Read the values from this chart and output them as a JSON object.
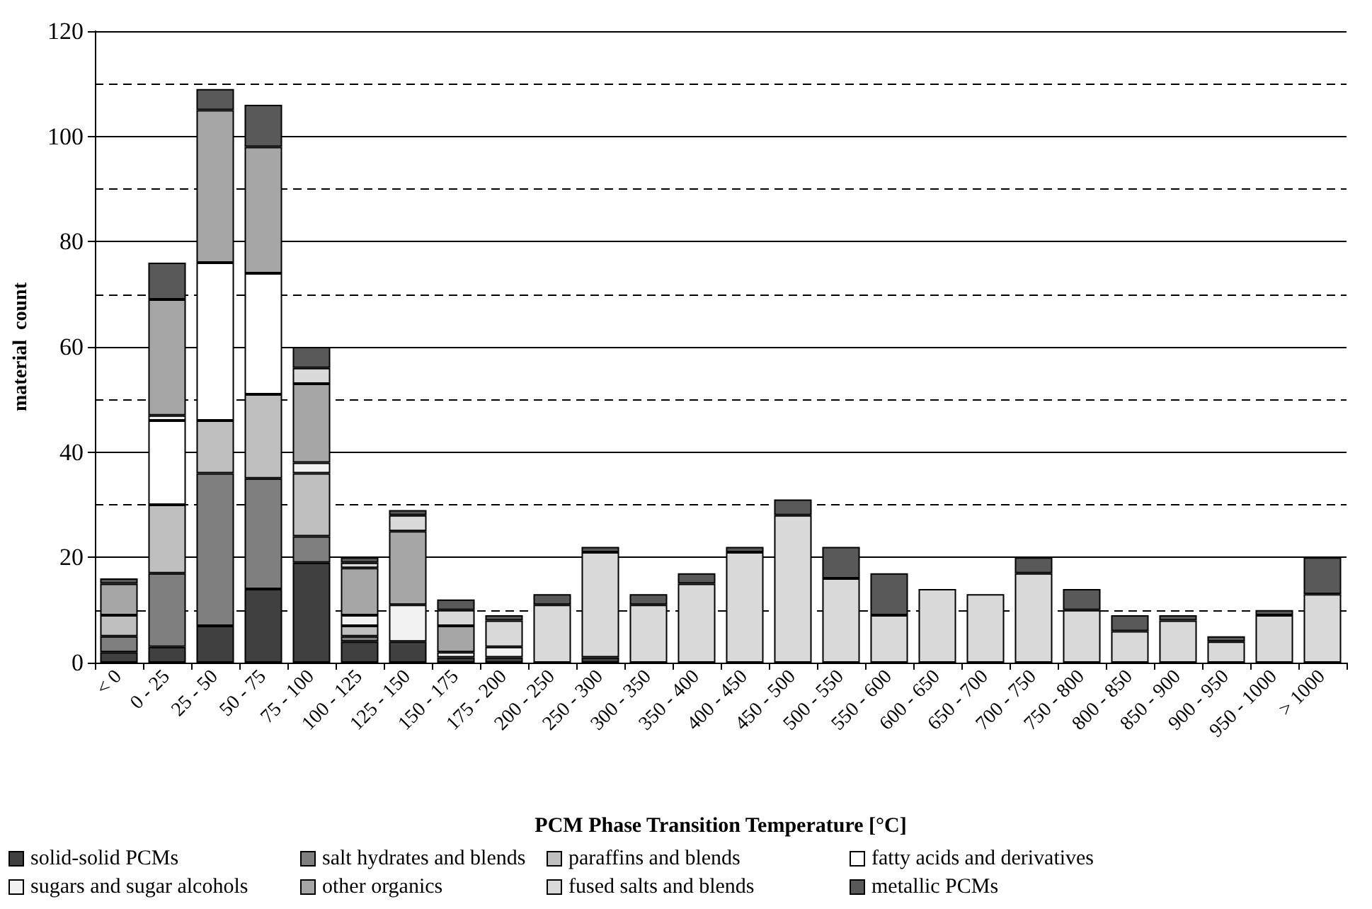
{
  "chart_data": {
    "type": "bar",
    "stacked": true,
    "xlabel": "PCM Phase Transition Temperature [°C]",
    "ylabel": "material  count",
    "categories": [
      "< 0",
      "0 - 25",
      "25 - 50",
      "50 - 75",
      "75 - 100",
      "100 - 125",
      "125 - 150",
      "150 - 175",
      "175 - 200",
      "200 - 250",
      "250 - 300",
      "300 - 350",
      "350 - 400",
      "400 - 450",
      "450 - 500",
      "500 - 550",
      "550 - 600",
      "600 - 650",
      "650 - 700",
      "700 - 750",
      "750 - 800",
      "800 - 850",
      "850 - 900",
      "900 - 950",
      "950 - 1000",
      "> 1000"
    ],
    "series": [
      {
        "name": "solid-solid PCMs",
        "color": "#404040",
        "values": [
          2,
          3,
          7,
          14,
          19,
          4,
          4,
          1,
          1,
          0,
          1,
          0,
          0,
          0,
          0,
          0,
          0,
          0,
          0,
          0,
          0,
          0,
          0,
          0,
          0,
          0
        ]
      },
      {
        "name": "salt hydrates and blends",
        "color": "#7f7f7f",
        "values": [
          3,
          14,
          29,
          21,
          5,
          1,
          0,
          0,
          0,
          0,
          0,
          0,
          0,
          0,
          0,
          0,
          0,
          0,
          0,
          0,
          0,
          0,
          0,
          0,
          0,
          0
        ]
      },
      {
        "name": "paraffins and blends",
        "color": "#bfbfbf",
        "values": [
          4,
          13,
          10,
          16,
          12,
          2,
          0,
          0,
          0,
          0,
          0,
          0,
          0,
          0,
          0,
          0,
          0,
          0,
          0,
          0,
          0,
          0,
          0,
          0,
          0,
          0
        ]
      },
      {
        "name": "fatty acids and derivatives",
        "color": "#ffffff",
        "values": [
          0,
          16,
          30,
          23,
          0,
          0,
          0,
          0,
          0,
          0,
          0,
          0,
          0,
          0,
          0,
          0,
          0,
          0,
          0,
          0,
          0,
          0,
          0,
          0,
          0,
          0
        ]
      },
      {
        "name": "sugars and sugar alcohols",
        "color": "#f2f2f2",
        "values": [
          0,
          1,
          0,
          0,
          2,
          2,
          7,
          1,
          2,
          0,
          0,
          0,
          0,
          0,
          0,
          0,
          0,
          0,
          0,
          0,
          0,
          0,
          0,
          0,
          0,
          0
        ]
      },
      {
        "name": "other organics",
        "color": "#a6a6a6",
        "values": [
          6,
          22,
          29,
          24,
          15,
          9,
          14,
          5,
          0,
          0,
          0,
          0,
          0,
          0,
          0,
          0,
          0,
          0,
          0,
          0,
          0,
          0,
          0,
          0,
          0,
          0
        ]
      },
      {
        "name": "fused salts and blends",
        "color": "#d9d9d9",
        "values": [
          0,
          0,
          0,
          0,
          3,
          1,
          3,
          3,
          5,
          11,
          20,
          11,
          15,
          21,
          28,
          16,
          9,
          14,
          13,
          17,
          10,
          6,
          8,
          4,
          9,
          13
        ]
      },
      {
        "name": "metallic PCMs",
        "color": "#595959",
        "values": [
          1,
          7,
          4,
          8,
          4,
          1,
          1,
          2,
          1,
          2,
          1,
          2,
          2,
          1,
          3,
          6,
          8,
          0,
          0,
          3,
          4,
          3,
          1,
          1,
          1,
          7
        ]
      }
    ],
    "ylim": [
      0,
      120
    ],
    "yticks": [
      0,
      20,
      40,
      60,
      80,
      100,
      120
    ],
    "grid": "y",
    "legend": "bottom"
  }
}
